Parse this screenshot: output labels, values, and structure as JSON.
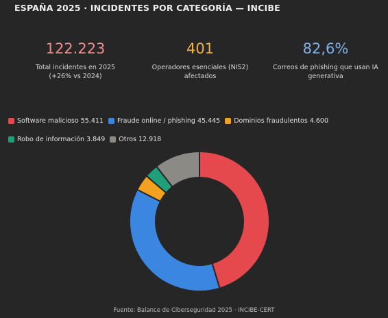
{
  "title": "ESPAÑA 2025 · INCIDENTES POR CATEGORÍA — INCIBE",
  "kpis": [
    {
      "value": "122.223",
      "label_1": "Total incidentes en 2025",
      "label_2": "(+26% vs 2024)",
      "color": "#f28b8b"
    },
    {
      "value": "401",
      "label_1": "Operadores esenciales (NIS2)",
      "label_2": "afectados",
      "color": "#f0b24a"
    },
    {
      "value": "82,6%",
      "label_1": "Correos de phishing que usan IA",
      "label_2": "generativa",
      "color": "#7fb0ea"
    }
  ],
  "legend_items": [
    "Software malicioso 55.411",
    "Fraude online / phishing 45.445",
    "Dominios fraudulentos 4.600",
    "Robo de información 3.849",
    "Otros 12.918"
  ],
  "source": "Fuente: Balance de Ciberseguridad 2025 · INCIBE-CERT",
  "chart_data": {
    "type": "pie",
    "variant": "donut",
    "title": "",
    "legend_position": "top",
    "series": [
      {
        "name": "Software malicioso",
        "value": 55411,
        "color": "#e5484d"
      },
      {
        "name": "Fraude online / phishing",
        "value": 45445,
        "color": "#3a86e0"
      },
      {
        "name": "Dominios fraudulentos",
        "value": 4600,
        "color": "#f2a21e"
      },
      {
        "name": "Robo de información",
        "value": 3849,
        "color": "#1fa07a"
      },
      {
        "name": "Otros",
        "value": 12918,
        "color": "#8c8a84"
      }
    ]
  }
}
